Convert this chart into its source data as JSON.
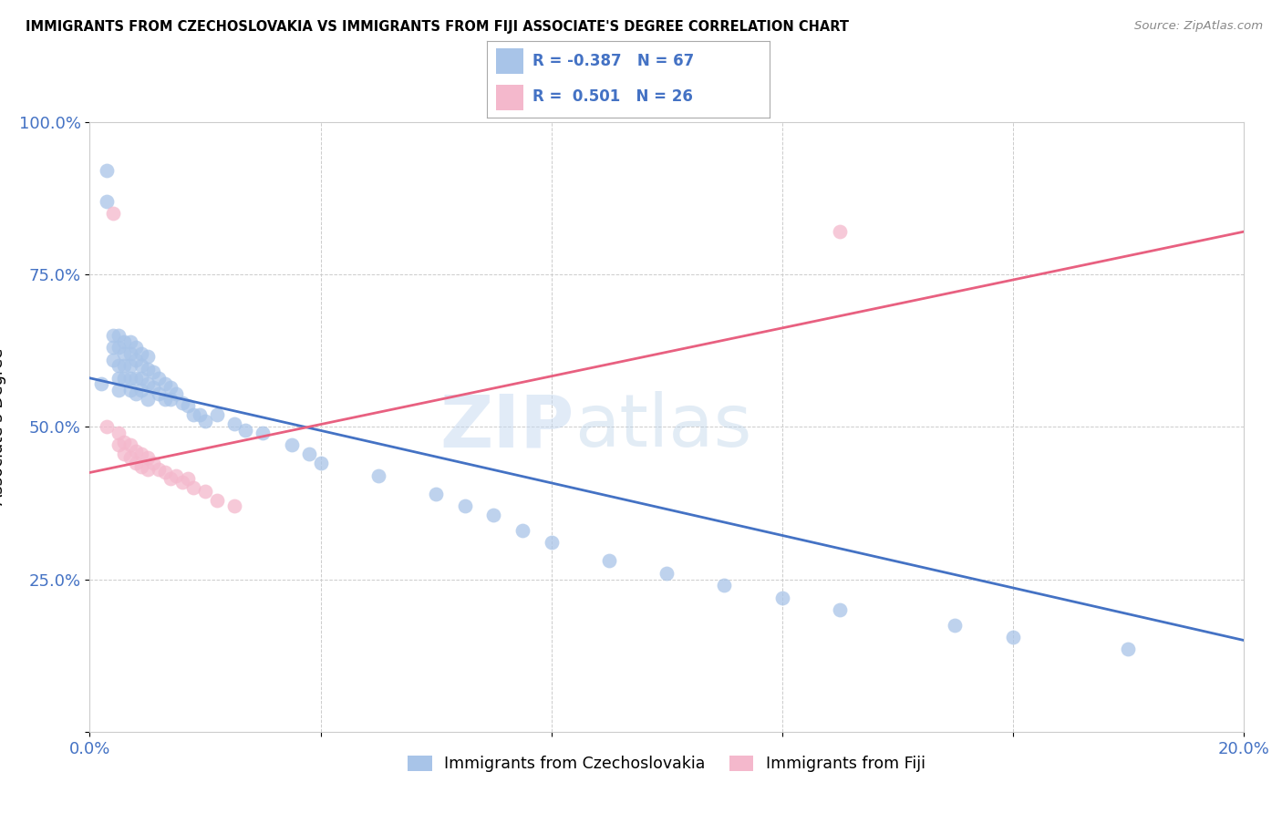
{
  "title": "IMMIGRANTS FROM CZECHOSLOVAKIA VS IMMIGRANTS FROM FIJI ASSOCIATE'S DEGREE CORRELATION CHART",
  "source": "Source: ZipAtlas.com",
  "ylabel": "Associate's Degree",
  "xlim": [
    0.0,
    0.2
  ],
  "ylim": [
    0.0,
    1.0
  ],
  "xticks": [
    0.0,
    0.04,
    0.08,
    0.12,
    0.16,
    0.2
  ],
  "yticks": [
    0.0,
    0.25,
    0.5,
    0.75,
    1.0
  ],
  "xticklabels": [
    "0.0%",
    "",
    "",
    "",
    "",
    "20.0%"
  ],
  "yticklabels": [
    "",
    "25.0%",
    "50.0%",
    "75.0%",
    "100.0%"
  ],
  "blue_color": "#A8C4E8",
  "pink_color": "#F4B8CC",
  "blue_line_color": "#4472C4",
  "pink_line_color": "#E86080",
  "legend_R1": "-0.387",
  "legend_N1": "67",
  "legend_R2": "0.501",
  "legend_N2": "26",
  "watermark_zip": "ZIP",
  "watermark_atlas": "atlas",
  "blue_scatter_x": [
    0.002,
    0.003,
    0.003,
    0.004,
    0.004,
    0.004,
    0.005,
    0.005,
    0.005,
    0.005,
    0.005,
    0.006,
    0.006,
    0.006,
    0.006,
    0.007,
    0.007,
    0.007,
    0.007,
    0.007,
    0.008,
    0.008,
    0.008,
    0.008,
    0.009,
    0.009,
    0.009,
    0.009,
    0.01,
    0.01,
    0.01,
    0.01,
    0.011,
    0.011,
    0.012,
    0.012,
    0.013,
    0.013,
    0.014,
    0.014,
    0.015,
    0.016,
    0.017,
    0.018,
    0.019,
    0.02,
    0.022,
    0.025,
    0.027,
    0.03,
    0.035,
    0.038,
    0.04,
    0.05,
    0.06,
    0.065,
    0.07,
    0.075,
    0.08,
    0.09,
    0.1,
    0.11,
    0.12,
    0.13,
    0.15,
    0.16,
    0.18
  ],
  "blue_scatter_y": [
    0.57,
    0.92,
    0.87,
    0.65,
    0.63,
    0.61,
    0.65,
    0.63,
    0.6,
    0.58,
    0.56,
    0.64,
    0.62,
    0.6,
    0.58,
    0.64,
    0.62,
    0.6,
    0.58,
    0.56,
    0.63,
    0.61,
    0.58,
    0.555,
    0.62,
    0.6,
    0.58,
    0.56,
    0.615,
    0.595,
    0.57,
    0.545,
    0.59,
    0.565,
    0.58,
    0.555,
    0.57,
    0.545,
    0.565,
    0.545,
    0.555,
    0.54,
    0.535,
    0.52,
    0.52,
    0.51,
    0.52,
    0.505,
    0.495,
    0.49,
    0.47,
    0.455,
    0.44,
    0.42,
    0.39,
    0.37,
    0.355,
    0.33,
    0.31,
    0.28,
    0.26,
    0.24,
    0.22,
    0.2,
    0.175,
    0.155,
    0.135
  ],
  "pink_scatter_x": [
    0.003,
    0.004,
    0.005,
    0.005,
    0.006,
    0.006,
    0.007,
    0.007,
    0.008,
    0.008,
    0.009,
    0.009,
    0.01,
    0.01,
    0.011,
    0.012,
    0.013,
    0.014,
    0.015,
    0.016,
    0.017,
    0.018,
    0.02,
    0.022,
    0.025,
    0.13
  ],
  "pink_scatter_y": [
    0.5,
    0.85,
    0.49,
    0.47,
    0.475,
    0.455,
    0.47,
    0.45,
    0.46,
    0.44,
    0.455,
    0.435,
    0.45,
    0.43,
    0.44,
    0.43,
    0.425,
    0.415,
    0.42,
    0.41,
    0.415,
    0.4,
    0.395,
    0.38,
    0.37,
    0.82
  ],
  "blue_trendline_x0": 0.0,
  "blue_trendline_y0": 0.58,
  "blue_trendline_x1": 0.2,
  "blue_trendline_y1": 0.15,
  "pink_trendline_x0": 0.0,
  "pink_trendline_y0": 0.425,
  "pink_trendline_x1": 0.2,
  "pink_trendline_y1": 0.82
}
